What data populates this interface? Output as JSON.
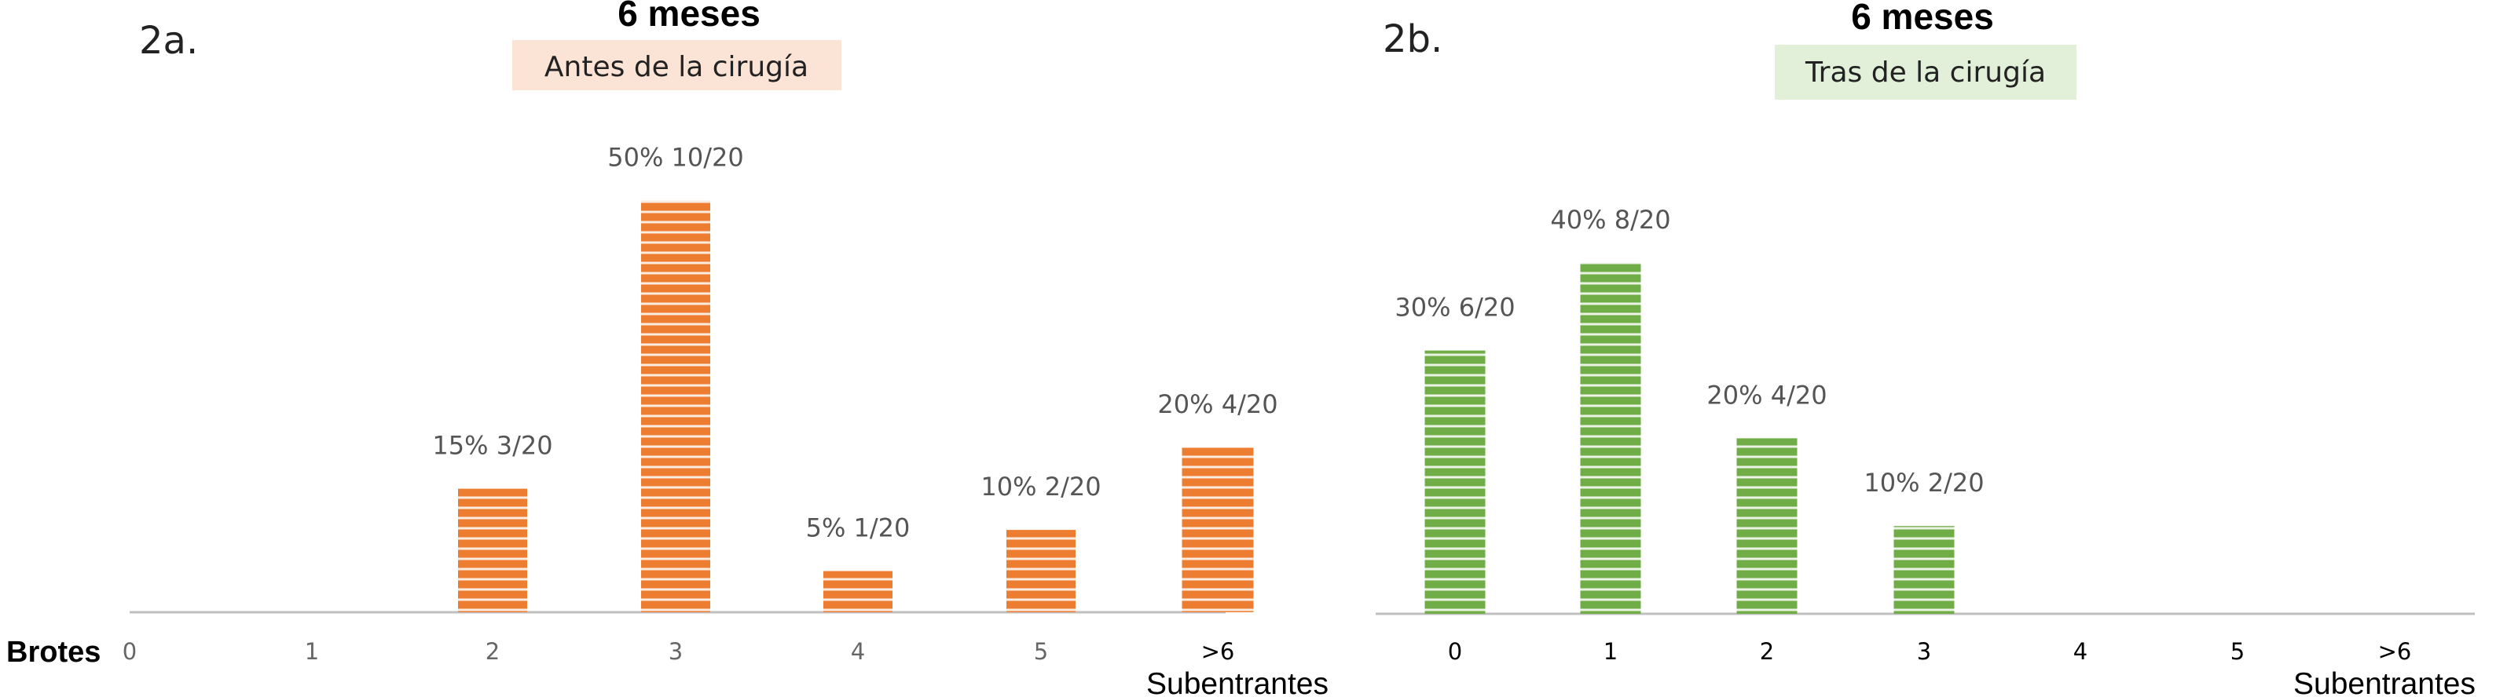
{
  "row_label": "Brotes",
  "colors": {
    "orange": "#ED7D31",
    "green": "#70AD47",
    "orange_box": "#FBE3D6",
    "green_box": "#E2F0D9",
    "axis": "#BFBFBF"
  },
  "chart_data": [
    {
      "type": "bar",
      "panel_label": "2a.",
      "title": "6 meses",
      "subtitle": "Antes de la cirugía",
      "categories": [
        "0",
        "1",
        "2",
        "3",
        "4",
        "5",
        ">6"
      ],
      "category_note": "Subentrantes",
      "values": [
        0,
        0,
        15,
        50,
        5,
        10,
        20
      ],
      "labels": [
        "",
        "",
        "15% 3/20",
        "50% 10/20",
        "5% 1/20",
        "10% 2/20",
        "20% 4/20"
      ],
      "ylim": [
        0,
        60
      ],
      "grid": false,
      "legend": "none"
    },
    {
      "type": "bar",
      "panel_label": "2b.",
      "title": "6 meses",
      "subtitle": "Tras de la cirugía",
      "categories": [
        "0",
        "1",
        "2",
        "3",
        "4",
        "5",
        ">6"
      ],
      "category_note": "Subentrantes",
      "values": [
        30,
        40,
        20,
        10,
        0,
        0,
        0
      ],
      "labels": [
        "30% 6/20",
        "40% 8/20",
        "20% 4/20",
        "10% 2/20",
        "",
        "",
        ""
      ],
      "ylim": [
        0,
        60
      ],
      "grid": false,
      "legend": "none"
    }
  ]
}
